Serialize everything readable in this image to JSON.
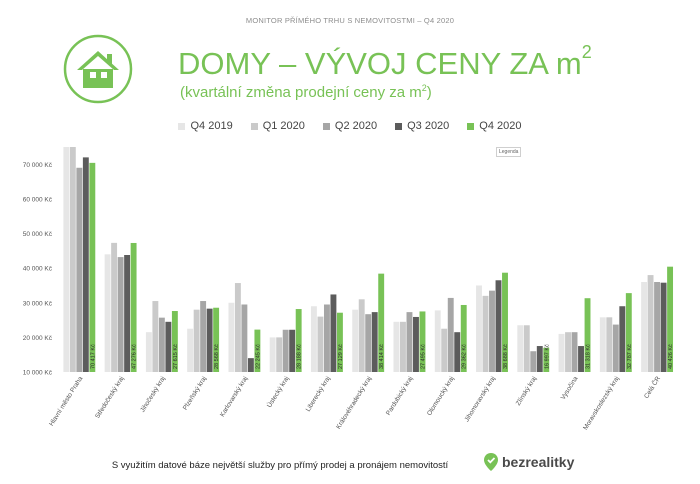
{
  "header": {
    "monitor": "MONITOR PŘÍMÉHO TRHU S NEMOVITOSTMI – Q4 2020",
    "title": "DOMY – VÝVOJ CENY ZA m",
    "title_sup": "2",
    "subtitle": "(kvartální změna prodejní ceny za m",
    "subtitle_sup": "2",
    "subtitle_end": ")",
    "legenda_label": "Legenda"
  },
  "footer": {
    "text": "S využitím datové báze největší služby pro přímý prodej a pronájem nemovitostí",
    "brand": "bezrealitky"
  },
  "colors": {
    "accent": "#78c256",
    "series": [
      "#e6e6e6",
      "#cacaca",
      "#a6a6a6",
      "#5c5c5c",
      "#78c256"
    ]
  },
  "chart_data": {
    "type": "bar",
    "ylim": [
      10000,
      75000
    ],
    "yticks": [
      10000,
      20000,
      30000,
      40000,
      50000,
      60000,
      70000
    ],
    "ytick_labels": [
      "10 000 Kč",
      "20 000 Kč",
      "30 000 Kč",
      "40 000 Kč",
      "50 000 Kč",
      "60 000 Kč",
      "70 000 Kč"
    ],
    "categories": [
      "Hlavní město Praha",
      "Středočeský kraj",
      "Jihočeský kraj",
      "Plzeňský kraj",
      "Karlovarský kraj",
      "Ústecký kraj",
      "Liberecký kraj",
      "Královéhradecký kraj",
      "Pardubický kraj",
      "Olomoucký kraj",
      "Jihomoravský kraj",
      "Zlínský kraj",
      "Vysočina",
      "Moravskoslezský kraj",
      "Celá ČR"
    ],
    "series": [
      {
        "name": "Q4 2019",
        "values": [
          75000,
          44000,
          21500,
          22500,
          30000,
          20000,
          29000,
          28000,
          24500,
          27800,
          35000,
          23500,
          21000,
          25800,
          36000
        ]
      },
      {
        "name": "Q1 2020",
        "values": [
          75000,
          47300,
          30500,
          28000,
          35700,
          20000,
          26000,
          31000,
          24500,
          22500,
          32000,
          23500,
          21500,
          25800,
          38000
        ]
      },
      {
        "name": "Q2 2020",
        "values": [
          69000,
          43200,
          25700,
          30500,
          29500,
          22200,
          29500,
          26700,
          27300,
          31400,
          33500,
          16000,
          21500,
          23700,
          36000
        ]
      },
      {
        "name": "Q3 2020",
        "values": [
          72000,
          43800,
          24500,
          28300,
          14000,
          22200,
          32400,
          27300,
          25900,
          21500,
          36500,
          17500,
          17500,
          29000,
          35800
        ]
      },
      {
        "name": "Q4 2020",
        "values": [
          70417,
          47276,
          27615,
          28568,
          22245,
          28188,
          27129,
          38414,
          27495,
          29362,
          38688,
          16997,
          31318,
          32787,
          40426
        ]
      }
    ],
    "data_labels": [
      "70 417 Kč",
      "47 276 Kč",
      "27 615 Kč",
      "28 568 Kč",
      "22 245 Kč",
      "28 188 Kč",
      "27 129 Kč",
      "38 414 Kč",
      "27 495 Kč",
      "29 362 Kč",
      "38 688 Kč",
      "16 997 Kč",
      "31 318 Kč",
      "32 787 Kč",
      "40 426 Kč"
    ]
  }
}
